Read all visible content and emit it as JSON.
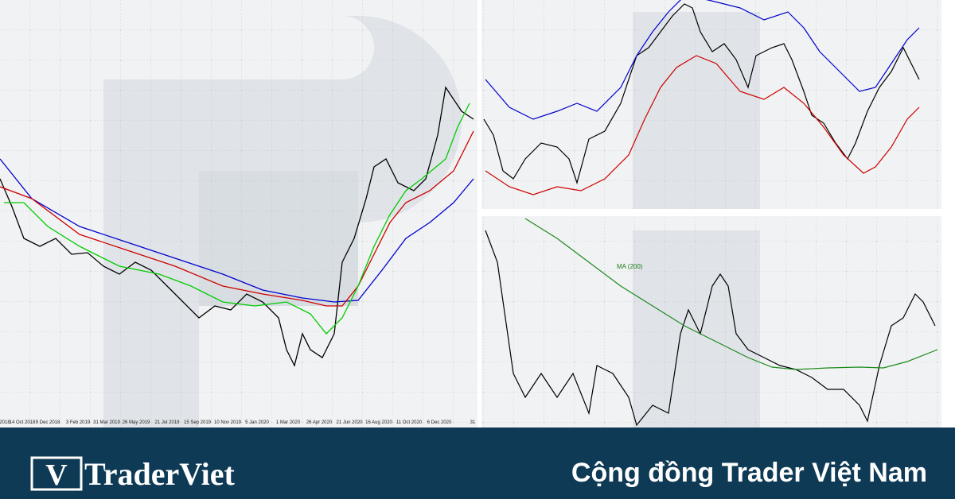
{
  "left_chart": {
    "x_labels": [
      "2018",
      "14 Oct 2018",
      "9 Dec 2018",
      "3 Feb 2019",
      "31 Mar 2019",
      "26 May 2019",
      "21 Jul 2019",
      "15 Sep 2019",
      "10 Nov 2019",
      "5 Jan 2020",
      "1 Mar 2020",
      "26 Apr 2020",
      "21 Jun 2020",
      "16 Aug 2020",
      "11 Oct 2020",
      "6 Dec 2020",
      "31"
    ]
  },
  "bottom_right_chart": {
    "annotation": "MA (200)"
  },
  "banner": {
    "logo_mark": "V",
    "brand": "TraderViet",
    "slogan": "Cộng đồng Trader Việt Nam"
  }
}
